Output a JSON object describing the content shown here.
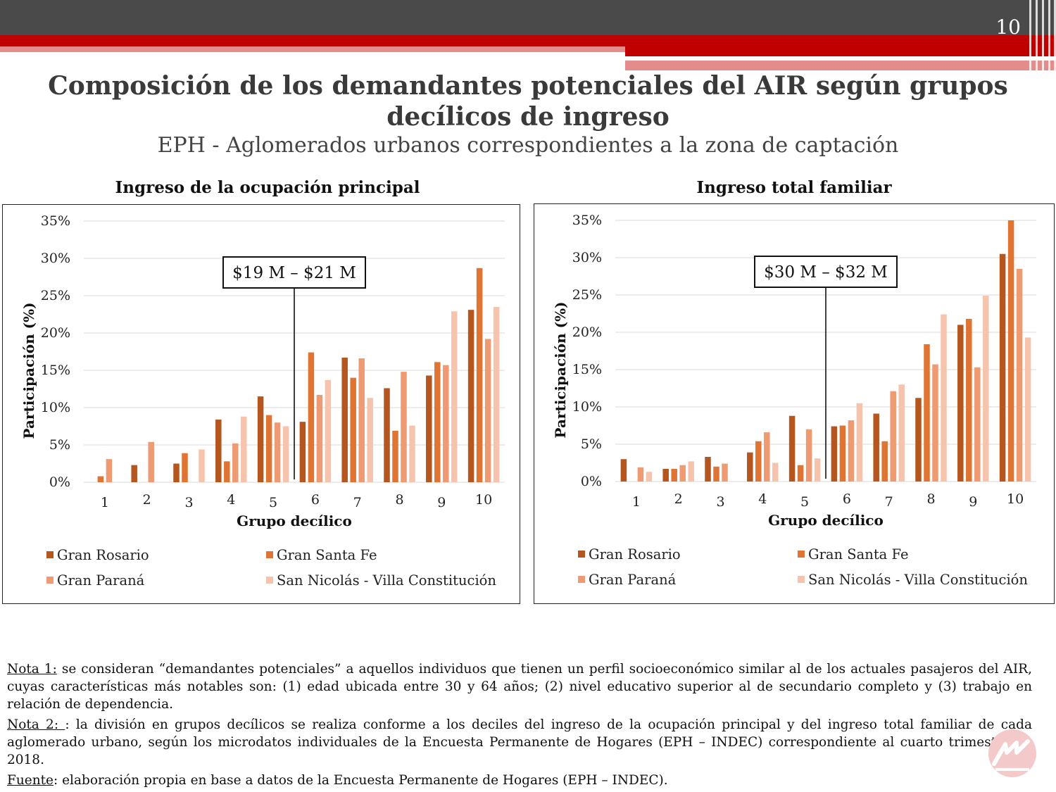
{
  "page_number": "10",
  "title_line1": "Composición de los demandantes potenciales del AIR según grupos",
  "title_line2": "decílicos de ingreso",
  "subtitle": "EPH - Aglomerados urbanos correspondientes a la zona de captación",
  "colors": {
    "topbar": "#4a4a4a",
    "red": "#c00000",
    "pink": "#e48b8b",
    "series": [
      "#b5561f",
      "#df7433",
      "#ee9a73",
      "#f6c3ad"
    ]
  },
  "chart_data": [
    {
      "type": "bar",
      "title": "Ingreso de la ocupación principal",
      "xlabel": "Grupo decílico",
      "ylabel": "Participación (%)",
      "ylim": [
        0,
        35
      ],
      "yticks": [
        "0%",
        "5%",
        "10%",
        "15%",
        "20%",
        "25%",
        "30%",
        "35%"
      ],
      "grid": true,
      "legend_position": "bottom",
      "annotation": "$19 M – $21 M",
      "annotation_x": 5.5,
      "categories": [
        "1",
        "2",
        "3",
        "4",
        "5",
        "6",
        "7",
        "8",
        "9",
        "10"
      ],
      "series": [
        {
          "name": "Gran Rosario",
          "values": [
            0,
            2.3,
            2.5,
            8.4,
            11.5,
            8.1,
            16.7,
            12.6,
            14.3,
            23.1
          ]
        },
        {
          "name": "Gran Santa Fe",
          "values": [
            0.8,
            0,
            3.9,
            2.8,
            9.0,
            17.4,
            14.0,
            6.9,
            16.1,
            28.7
          ]
        },
        {
          "name": "Gran Paraná",
          "values": [
            3.1,
            5.4,
            0,
            5.2,
            8.0,
            11.7,
            16.6,
            14.8,
            15.7,
            19.2
          ]
        },
        {
          "name": "San Nicolás - Villa Constitución",
          "values": [
            0,
            0,
            4.4,
            8.8,
            7.5,
            13.7,
            11.3,
            7.6,
            22.9,
            23.5
          ]
        }
      ]
    },
    {
      "type": "bar",
      "title": "Ingreso total familiar",
      "xlabel": "Grupo decílico",
      "ylabel": "Participación (%)",
      "ylim": [
        0,
        35
      ],
      "yticks": [
        "0%",
        "5%",
        "10%",
        "15%",
        "20%",
        "25%",
        "30%",
        "35%"
      ],
      "grid": true,
      "legend_position": "bottom",
      "annotation": "$30 M – $32 M",
      "annotation_x": 5.5,
      "categories": [
        "1",
        "2",
        "3",
        "4",
        "5",
        "6",
        "7",
        "8",
        "9",
        "10"
      ],
      "series": [
        {
          "name": "Gran Rosario",
          "values": [
            3.0,
            1.7,
            3.3,
            3.9,
            8.8,
            7.4,
            9.1,
            11.2,
            21.0,
            30.5
          ]
        },
        {
          "name": "Gran Santa Fe",
          "values": [
            0,
            1.7,
            2.0,
            5.4,
            2.2,
            7.5,
            5.4,
            18.4,
            21.8,
            35.0
          ]
        },
        {
          "name": "Gran Paraná",
          "values": [
            1.9,
            2.2,
            2.4,
            6.6,
            7.0,
            8.2,
            12.1,
            15.7,
            15.3,
            28.5
          ]
        },
        {
          "name": "San Nicolás - Villa Constitución",
          "values": [
            1.3,
            2.7,
            0,
            2.5,
            3.1,
            10.5,
            13.0,
            22.4,
            24.9,
            19.3
          ]
        }
      ]
    }
  ],
  "notes": {
    "nota1_label": "Nota 1:",
    "nota1_text": " se consideran “demandantes potenciales” a aquellos individuos que tienen un perfil socioeconómico similar al de los actuales pasajeros del AIR, cuyas características más notables son: (1) edad ubicada entre 30 y 64 años; (2) nivel educativo superior al de secundario completo y (3) trabajo en relación de dependencia.",
    "nota2_label": "Nota 2: ",
    "nota2_text": ": la división en grupos decílicos se realiza conforme a los deciles del ingreso de la ocupación principal y del ingreso total familiar de cada aglomerado urbano, según los microdatos individuales de la Encuesta Permanente de Hogares (EPH – INDEC) correspondiente al cuarto trimestre de 2018.",
    "fuente_label": "Fuente",
    "fuente_text": ": elaboración propia en base a datos de la Encuesta Permanente de Hogares (EPH – INDEC)."
  }
}
